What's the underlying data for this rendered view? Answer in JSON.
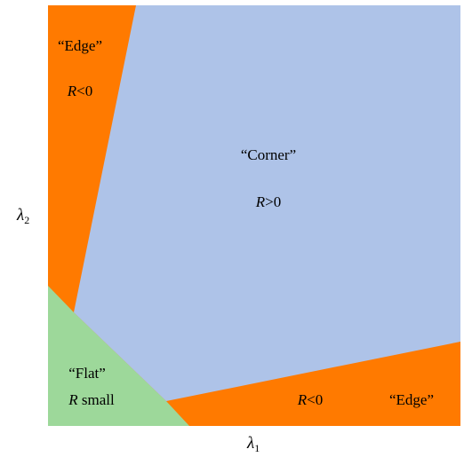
{
  "axes": {
    "x_symbol": "λ",
    "x_subscript": "1",
    "y_symbol": "λ",
    "y_subscript": "2"
  },
  "regions": {
    "edge_top": {
      "title": "“Edge”",
      "var": "R",
      "rel": "<0",
      "color": "#ff7a00"
    },
    "corner": {
      "title": "“Corner”",
      "var": "R",
      "rel": ">0",
      "color": "#aec3e8"
    },
    "flat": {
      "title": "“Flat”",
      "var": "R",
      "rel": " small",
      "color": "#9dd89a"
    },
    "edge_bottom": {
      "title": "“Edge”",
      "var": "R",
      "rel": "<0",
      "color": "#ff7a00"
    }
  }
}
